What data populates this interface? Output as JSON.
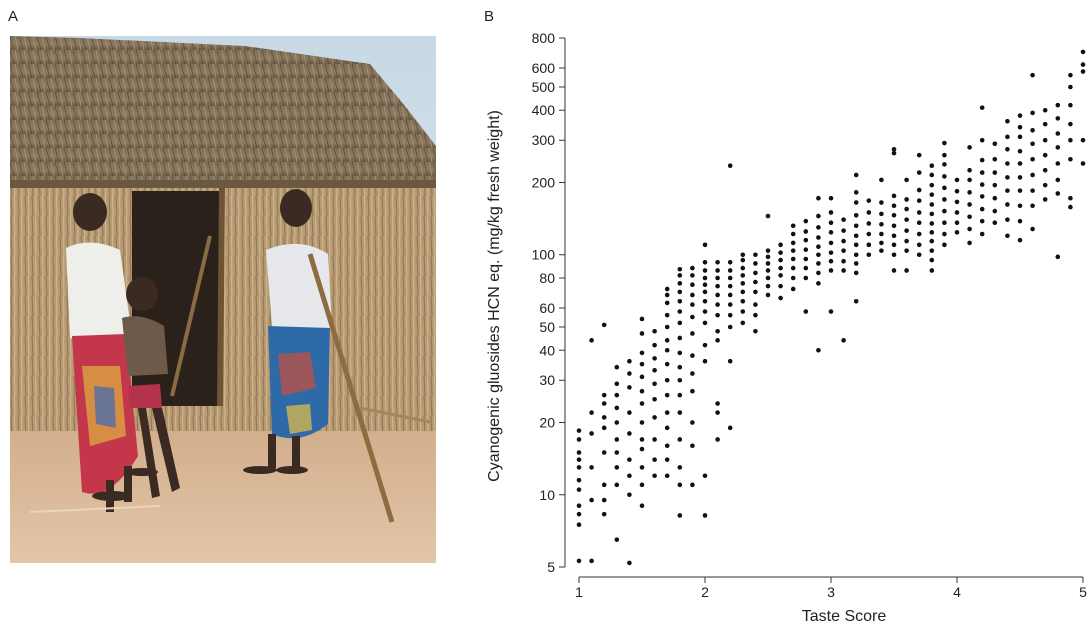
{
  "panels": {
    "a_label": "A",
    "b_label": "B"
  },
  "photo": {
    "description_icon": "photo-figure"
  },
  "chart_data": {
    "type": "scatter",
    "title": "",
    "xlabel": "Taste Score",
    "ylabel": "Cyanogenic gluosides HCN eq. (mg/kg fresh weight)",
    "xlim": [
      1,
      5
    ],
    "ylim": [
      5,
      800
    ],
    "y_scale": "log",
    "x_ticks": [
      1,
      2,
      3,
      4,
      5
    ],
    "y_ticks": [
      5,
      10,
      20,
      30,
      40,
      50,
      60,
      80,
      100,
      200,
      300,
      400,
      500,
      600,
      800
    ],
    "grid": false,
    "legend": "none",
    "point_color": "#111111",
    "points": [
      [
        1.0,
        5.3
      ],
      [
        1.1,
        5.3
      ],
      [
        1.4,
        5.2
      ],
      [
        1.3,
        6.5
      ],
      [
        1.0,
        7.5
      ],
      [
        1.0,
        8.3
      ],
      [
        1.0,
        9
      ],
      [
        1.0,
        10.5
      ],
      [
        1.0,
        11.5
      ],
      [
        1.0,
        13
      ],
      [
        1.0,
        14
      ],
      [
        1.0,
        15
      ],
      [
        1.0,
        17
      ],
      [
        1.0,
        18.5
      ],
      [
        1.1,
        9.5
      ],
      [
        1.1,
        13
      ],
      [
        1.1,
        18
      ],
      [
        1.1,
        22
      ],
      [
        1.1,
        44
      ],
      [
        1.2,
        8.3
      ],
      [
        1.2,
        9.5
      ],
      [
        1.2,
        11
      ],
      [
        1.2,
        15
      ],
      [
        1.2,
        19
      ],
      [
        1.2,
        21
      ],
      [
        1.2,
        24
      ],
      [
        1.2,
        26
      ],
      [
        1.2,
        51
      ],
      [
        1.3,
        11
      ],
      [
        1.3,
        13
      ],
      [
        1.3,
        15
      ],
      [
        1.3,
        17
      ],
      [
        1.3,
        20
      ],
      [
        1.3,
        23
      ],
      [
        1.3,
        26
      ],
      [
        1.3,
        29
      ],
      [
        1.3,
        34
      ],
      [
        1.4,
        10
      ],
      [
        1.4,
        12
      ],
      [
        1.4,
        14
      ],
      [
        1.4,
        18
      ],
      [
        1.4,
        22
      ],
      [
        1.4,
        28
      ],
      [
        1.4,
        32
      ],
      [
        1.4,
        36
      ],
      [
        1.5,
        9
      ],
      [
        1.5,
        11
      ],
      [
        1.5,
        13
      ],
      [
        1.5,
        15.5
      ],
      [
        1.5,
        17
      ],
      [
        1.5,
        20
      ],
      [
        1.5,
        24
      ],
      [
        1.5,
        27
      ],
      [
        1.5,
        31
      ],
      [
        1.5,
        35
      ],
      [
        1.5,
        39
      ],
      [
        1.5,
        47
      ],
      [
        1.5,
        54
      ],
      [
        1.6,
        12
      ],
      [
        1.6,
        14
      ],
      [
        1.6,
        17
      ],
      [
        1.6,
        21
      ],
      [
        1.6,
        25
      ],
      [
        1.6,
        29
      ],
      [
        1.6,
        33
      ],
      [
        1.6,
        37
      ],
      [
        1.6,
        42
      ],
      [
        1.6,
        48
      ],
      [
        1.7,
        12
      ],
      [
        1.7,
        14
      ],
      [
        1.7,
        16
      ],
      [
        1.7,
        19
      ],
      [
        1.7,
        22
      ],
      [
        1.7,
        26
      ],
      [
        1.7,
        30
      ],
      [
        1.7,
        35
      ],
      [
        1.7,
        40
      ],
      [
        1.7,
        44
      ],
      [
        1.7,
        50
      ],
      [
        1.7,
        56
      ],
      [
        1.7,
        63
      ],
      [
        1.7,
        68
      ],
      [
        1.7,
        72
      ],
      [
        1.8,
        8.2
      ],
      [
        1.8,
        11
      ],
      [
        1.8,
        13
      ],
      [
        1.8,
        17
      ],
      [
        1.8,
        22
      ],
      [
        1.8,
        26
      ],
      [
        1.8,
        30
      ],
      [
        1.8,
        34
      ],
      [
        1.8,
        39
      ],
      [
        1.8,
        45
      ],
      [
        1.8,
        52
      ],
      [
        1.8,
        58
      ],
      [
        1.8,
        64
      ],
      [
        1.8,
        70
      ],
      [
        1.8,
        76
      ],
      [
        1.8,
        82
      ],
      [
        1.8,
        87
      ],
      [
        1.9,
        11
      ],
      [
        1.9,
        16
      ],
      [
        1.9,
        20
      ],
      [
        1.9,
        27
      ],
      [
        1.9,
        32
      ],
      [
        1.9,
        38
      ],
      [
        1.9,
        47
      ],
      [
        1.9,
        55
      ],
      [
        1.9,
        62
      ],
      [
        1.9,
        68
      ],
      [
        1.9,
        75
      ],
      [
        1.9,
        82
      ],
      [
        1.9,
        88
      ],
      [
        2.0,
        8.2
      ],
      [
        2.0,
        12
      ],
      [
        2.0,
        36
      ],
      [
        2.0,
        42
      ],
      [
        2.0,
        52
      ],
      [
        2.0,
        58
      ],
      [
        2.0,
        64
      ],
      [
        2.0,
        70
      ],
      [
        2.0,
        75
      ],
      [
        2.0,
        80
      ],
      [
        2.0,
        86
      ],
      [
        2.0,
        93
      ],
      [
        2.0,
        110
      ],
      [
        2.1,
        17
      ],
      [
        2.1,
        22
      ],
      [
        2.1,
        24
      ],
      [
        2.1,
        44
      ],
      [
        2.1,
        48
      ],
      [
        2.1,
        56
      ],
      [
        2.1,
        62
      ],
      [
        2.1,
        68
      ],
      [
        2.1,
        74
      ],
      [
        2.1,
        80
      ],
      [
        2.1,
        86
      ],
      [
        2.1,
        93
      ],
      [
        2.2,
        19
      ],
      [
        2.2,
        36
      ],
      [
        2.2,
        50
      ],
      [
        2.2,
        56
      ],
      [
        2.2,
        62
      ],
      [
        2.2,
        68
      ],
      [
        2.2,
        74
      ],
      [
        2.2,
        80
      ],
      [
        2.2,
        86
      ],
      [
        2.2,
        93
      ],
      [
        2.2,
        235
      ],
      [
        2.3,
        52
      ],
      [
        2.3,
        58
      ],
      [
        2.3,
        64
      ],
      [
        2.3,
        70
      ],
      [
        2.3,
        76
      ],
      [
        2.3,
        82
      ],
      [
        2.3,
        88
      ],
      [
        2.3,
        95
      ],
      [
        2.3,
        100
      ],
      [
        2.4,
        48
      ],
      [
        2.4,
        56
      ],
      [
        2.4,
        62
      ],
      [
        2.4,
        70
      ],
      [
        2.4,
        77
      ],
      [
        2.4,
        84
      ],
      [
        2.4,
        92
      ],
      [
        2.4,
        100
      ],
      [
        2.5,
        68
      ],
      [
        2.5,
        74
      ],
      [
        2.5,
        80
      ],
      [
        2.5,
        86
      ],
      [
        2.5,
        92
      ],
      [
        2.5,
        98
      ],
      [
        2.5,
        104
      ],
      [
        2.5,
        145
      ],
      [
        2.6,
        66
      ],
      [
        2.6,
        74
      ],
      [
        2.6,
        82
      ],
      [
        2.6,
        88
      ],
      [
        2.6,
        95
      ],
      [
        2.6,
        102
      ],
      [
        2.6,
        110
      ],
      [
        2.7,
        72
      ],
      [
        2.7,
        80
      ],
      [
        2.7,
        88
      ],
      [
        2.7,
        96
      ],
      [
        2.7,
        104
      ],
      [
        2.7,
        112
      ],
      [
        2.7,
        122
      ],
      [
        2.7,
        132
      ],
      [
        2.8,
        58
      ],
      [
        2.8,
        80
      ],
      [
        2.8,
        88
      ],
      [
        2.8,
        96
      ],
      [
        2.8,
        105
      ],
      [
        2.8,
        115
      ],
      [
        2.8,
        125
      ],
      [
        2.8,
        138
      ],
      [
        2.9,
        40
      ],
      [
        2.9,
        76
      ],
      [
        2.9,
        84
      ],
      [
        2.9,
        92
      ],
      [
        2.9,
        100
      ],
      [
        2.9,
        108
      ],
      [
        2.9,
        118
      ],
      [
        2.9,
        130
      ],
      [
        2.9,
        145
      ],
      [
        2.9,
        172
      ],
      [
        3.0,
        58
      ],
      [
        3.0,
        86
      ],
      [
        3.0,
        94
      ],
      [
        3.0,
        102
      ],
      [
        3.0,
        112
      ],
      [
        3.0,
        124
      ],
      [
        3.0,
        136
      ],
      [
        3.0,
        150
      ],
      [
        3.0,
        172
      ],
      [
        3.1,
        44
      ],
      [
        3.1,
        86
      ],
      [
        3.1,
        94
      ],
      [
        3.1,
        104
      ],
      [
        3.1,
        114
      ],
      [
        3.1,
        126
      ],
      [
        3.1,
        140
      ],
      [
        3.2,
        64
      ],
      [
        3.2,
        84
      ],
      [
        3.2,
        92
      ],
      [
        3.2,
        100
      ],
      [
        3.2,
        110
      ],
      [
        3.2,
        120
      ],
      [
        3.2,
        132
      ],
      [
        3.2,
        146
      ],
      [
        3.2,
        165
      ],
      [
        3.2,
        182
      ],
      [
        3.2,
        215
      ],
      [
        3.3,
        100
      ],
      [
        3.3,
        110
      ],
      [
        3.3,
        122
      ],
      [
        3.3,
        135
      ],
      [
        3.3,
        150
      ],
      [
        3.3,
        168
      ],
      [
        3.4,
        104
      ],
      [
        3.4,
        112
      ],
      [
        3.4,
        122
      ],
      [
        3.4,
        134
      ],
      [
        3.4,
        148
      ],
      [
        3.4,
        165
      ],
      [
        3.4,
        205
      ],
      [
        3.5,
        86
      ],
      [
        3.5,
        100
      ],
      [
        3.5,
        110
      ],
      [
        3.5,
        120
      ],
      [
        3.5,
        132
      ],
      [
        3.5,
        146
      ],
      [
        3.5,
        160
      ],
      [
        3.5,
        176
      ],
      [
        3.5,
        265
      ],
      [
        3.5,
        275
      ],
      [
        3.6,
        86
      ],
      [
        3.6,
        104
      ],
      [
        3.6,
        114
      ],
      [
        3.6,
        126
      ],
      [
        3.6,
        140
      ],
      [
        3.6,
        155
      ],
      [
        3.6,
        170
      ],
      [
        3.6,
        205
      ],
      [
        3.7,
        100
      ],
      [
        3.7,
        110
      ],
      [
        3.7,
        122
      ],
      [
        3.7,
        136
      ],
      [
        3.7,
        150
      ],
      [
        3.7,
        168
      ],
      [
        3.7,
        186
      ],
      [
        3.7,
        220
      ],
      [
        3.7,
        260
      ],
      [
        3.8,
        86
      ],
      [
        3.8,
        95
      ],
      [
        3.8,
        104
      ],
      [
        3.8,
        114
      ],
      [
        3.8,
        124
      ],
      [
        3.8,
        135
      ],
      [
        3.8,
        148
      ],
      [
        3.8,
        162
      ],
      [
        3.8,
        178
      ],
      [
        3.8,
        195
      ],
      [
        3.8,
        215
      ],
      [
        3.8,
        235
      ],
      [
        3.9,
        110
      ],
      [
        3.9,
        122
      ],
      [
        3.9,
        136
      ],
      [
        3.9,
        152
      ],
      [
        3.9,
        170
      ],
      [
        3.9,
        190
      ],
      [
        3.9,
        212
      ],
      [
        3.9,
        238
      ],
      [
        3.9,
        260
      ],
      [
        3.9,
        292
      ],
      [
        4.0,
        124
      ],
      [
        4.0,
        136
      ],
      [
        4.0,
        150
      ],
      [
        4.0,
        166
      ],
      [
        4.0,
        184
      ],
      [
        4.0,
        205
      ],
      [
        4.1,
        112
      ],
      [
        4.1,
        128
      ],
      [
        4.1,
        144
      ],
      [
        4.1,
        162
      ],
      [
        4.1,
        182
      ],
      [
        4.1,
        205
      ],
      [
        4.1,
        225
      ],
      [
        4.1,
        280
      ],
      [
        4.2,
        122
      ],
      [
        4.2,
        138
      ],
      [
        4.2,
        155
      ],
      [
        4.2,
        175
      ],
      [
        4.2,
        196
      ],
      [
        4.2,
        220
      ],
      [
        4.2,
        248
      ],
      [
        4.2,
        300
      ],
      [
        4.2,
        410
      ],
      [
        4.3,
        136
      ],
      [
        4.3,
        152
      ],
      [
        4.3,
        172
      ],
      [
        4.3,
        195
      ],
      [
        4.3,
        220
      ],
      [
        4.3,
        250
      ],
      [
        4.3,
        290
      ],
      [
        4.4,
        120
      ],
      [
        4.4,
        140
      ],
      [
        4.4,
        162
      ],
      [
        4.4,
        185
      ],
      [
        4.4,
        210
      ],
      [
        4.4,
        240
      ],
      [
        4.4,
        275
      ],
      [
        4.4,
        310
      ],
      [
        4.4,
        360
      ],
      [
        4.5,
        115
      ],
      [
        4.5,
        138
      ],
      [
        4.5,
        160
      ],
      [
        4.5,
        185
      ],
      [
        4.5,
        210
      ],
      [
        4.5,
        240
      ],
      [
        4.5,
        270
      ],
      [
        4.5,
        310
      ],
      [
        4.5,
        340
      ],
      [
        4.5,
        380
      ],
      [
        4.6,
        128
      ],
      [
        4.6,
        160
      ],
      [
        4.6,
        185
      ],
      [
        4.6,
        215
      ],
      [
        4.6,
        250
      ],
      [
        4.6,
        290
      ],
      [
        4.6,
        330
      ],
      [
        4.6,
        390
      ],
      [
        4.6,
        560
      ],
      [
        4.7,
        170
      ],
      [
        4.7,
        195
      ],
      [
        4.7,
        225
      ],
      [
        4.7,
        260
      ],
      [
        4.7,
        300
      ],
      [
        4.7,
        350
      ],
      [
        4.7,
        400
      ],
      [
        4.8,
        98
      ],
      [
        4.8,
        180
      ],
      [
        4.8,
        205
      ],
      [
        4.8,
        240
      ],
      [
        4.8,
        280
      ],
      [
        4.8,
        320
      ],
      [
        4.8,
        370
      ],
      [
        4.8,
        420
      ],
      [
        4.9,
        158
      ],
      [
        4.9,
        172
      ],
      [
        4.9,
        250
      ],
      [
        4.9,
        300
      ],
      [
        4.9,
        350
      ],
      [
        4.9,
        420
      ],
      [
        4.9,
        500
      ],
      [
        4.9,
        560
      ],
      [
        5.0,
        240
      ],
      [
        5.0,
        300
      ],
      [
        5.0,
        580
      ],
      [
        5.0,
        620
      ],
      [
        5.0,
        700
      ]
    ]
  }
}
